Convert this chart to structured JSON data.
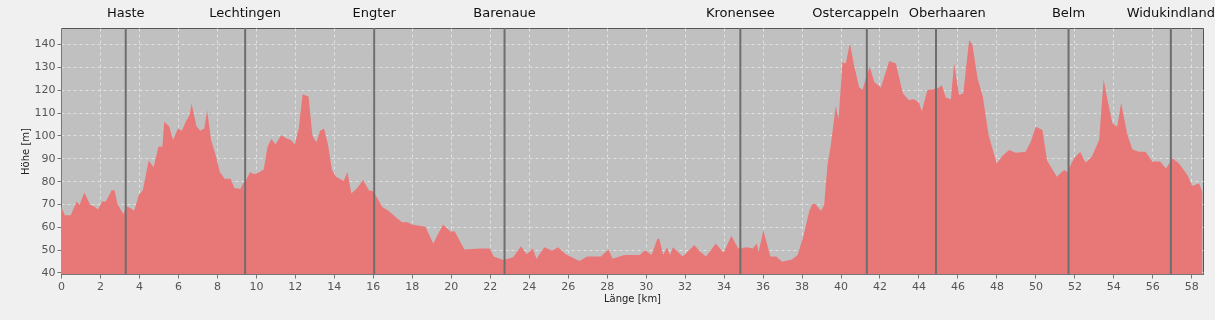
{
  "chart_data": {
    "type": "area",
    "xlabel": "Länge [km]",
    "ylabel": "Höhe [m]",
    "x": [
      0,
      0.2,
      0.5,
      0.8,
      0.95,
      1.2,
      1.5,
      1.7,
      1.9,
      2.1,
      2.3,
      2.6,
      2.75,
      2.9,
      3.2,
      3.35,
      3.6,
      3.75,
      4.0,
      4.2,
      4.5,
      4.75,
      5.0,
      5.2,
      5.3,
      5.55,
      5.75,
      6.0,
      6.2,
      6.4,
      6.6,
      6.7,
      6.95,
      7.15,
      7.35,
      7.5,
      7.7,
      7.95,
      8.15,
      8.4,
      8.7,
      8.9,
      9.2,
      9.35,
      9.45,
      9.7,
      9.9,
      10.2,
      10.4,
      10.6,
      10.8,
      11.0,
      11.3,
      11.6,
      11.8,
      12.0,
      12.2,
      12.4,
      12.7,
      12.9,
      13.1,
      13.3,
      13.5,
      13.7,
      13.9,
      14.1,
      14.5,
      14.7,
      14.9,
      15.2,
      15.5,
      15.8,
      16.0,
      16.2,
      16.5,
      16.8,
      17.2,
      17.5,
      17.8,
      18.0,
      18.7,
      19.1,
      19.6,
      20.0,
      20.2,
      20.7,
      21.5,
      22.0,
      22.2,
      22.7,
      23.2,
      23.6,
      23.9,
      24.2,
      24.4,
      24.8,
      25.2,
      25.5,
      25.9,
      26.6,
      27.0,
      27.7,
      28.1,
      28.3,
      28.9,
      29.7,
      29.97,
      30.3,
      30.6,
      30.7,
      30.9,
      31.1,
      31.25,
      31.4,
      31.9,
      32.5,
      32.8,
      33.1,
      33.6,
      34.0,
      34.4,
      34.75,
      35.2,
      35.5,
      35.7,
      35.8,
      36.04,
      36.4,
      36.7,
      37.0,
      37.5,
      37.8,
      38.1,
      38.4,
      38.56,
      38.7,
      39.0,
      39.16,
      39.33,
      39.5,
      39.76,
      39.9,
      40.1,
      40.27,
      40.48,
      40.7,
      40.96,
      41.13,
      41.3,
      41.5,
      41.73,
      42.07,
      42.5,
      42.84,
      43.2,
      43.5,
      43.78,
      44.03,
      44.17,
      44.46,
      44.7,
      45.06,
      45.2,
      45.4,
      45.66,
      45.83,
      46.08,
      46.3,
      46.6,
      46.77,
      47.03,
      47.3,
      47.6,
      48.02,
      48.3,
      48.65,
      48.99,
      49.5,
      49.76,
      50.02,
      50.36,
      50.6,
      51.1,
      51.47,
      51.64,
      51.98,
      52.3,
      52.58,
      52.9,
      53.27,
      53.5,
      53.7,
      53.95,
      54.2,
      54.4,
      54.7,
      54.97,
      55.3,
      55.65,
      56.0,
      56.4,
      56.7,
      57.03,
      57.37,
      57.8,
      58.05,
      58.4,
      58.56
    ],
    "series": [
      {
        "color": "#e87878",
        "values": [
          69,
          65,
          65,
          71,
          69.5,
          75,
          69.5,
          69,
          67.5,
          71,
          71,
          76,
          76,
          70,
          65.5,
          69,
          68,
          67,
          74,
          76,
          89,
          86,
          95,
          95,
          106,
          104,
          98,
          103,
          102,
          106,
          109,
          114,
          104,
          102,
          103,
          111,
          98,
          91,
          84,
          81,
          81,
          77,
          76.5,
          79,
          79.5,
          84,
          83,
          84,
          85,
          95,
          98.5,
          96,
          100,
          98.5,
          98,
          96,
          103,
          118,
          117,
          100,
          97,
          102,
          103,
          96,
          85,
          82,
          80,
          84,
          74.5,
          77,
          80.5,
          76,
          75.5,
          73,
          68.5,
          67,
          64,
          62,
          62,
          61,
          60,
          52.7,
          61,
          57.8,
          58,
          50,
          50.5,
          50.5,
          47,
          45.4,
          46.6,
          51.5,
          48,
          50.5,
          46,
          51,
          49.5,
          51,
          48,
          45,
          47,
          47,
          50,
          46,
          47.6,
          47.6,
          49.8,
          47.6,
          54.6,
          54.7,
          47.6,
          51,
          47.6,
          51,
          47,
          52,
          49,
          47,
          52.7,
          48.6,
          56,
          50.5,
          51,
          50.5,
          52.7,
          49,
          58.5,
          47,
          47,
          44.7,
          45.7,
          47.6,
          56,
          67,
          70,
          70,
          67,
          69.5,
          87,
          95.8,
          113,
          107,
          132,
          131.5,
          140.3,
          130.5,
          121,
          120,
          125,
          130,
          123.5,
          121,
          132.6,
          131.5,
          118.4,
          115.5,
          115.8,
          114.3,
          110.4,
          120,
          120,
          121,
          122,
          116.6,
          115.8,
          131.5,
          117.7,
          118.4,
          141.8,
          139.6,
          125,
          117,
          100,
          87.7,
          91,
          93.6,
          92.4,
          92.8,
          97.2,
          103.8,
          102.3,
          89,
          81.9,
          84.8,
          84,
          90,
          92.8,
          88,
          90.7,
          98,
          124.5,
          115.5,
          105.3,
          103.8,
          114.3,
          100.9,
          93.9,
          92.8,
          92.8,
          88.5,
          88.5,
          85.5,
          90,
          87.7,
          82.6,
          77.8,
          79,
          75.3
        ]
      }
    ],
    "xlim": [
      0,
      58.6
    ],
    "ylim": [
      39.3,
      147
    ],
    "xticks": [
      0,
      2,
      4,
      6,
      8,
      10,
      12,
      14,
      16,
      18,
      20,
      22,
      24,
      26,
      28,
      30,
      32,
      34,
      36,
      38,
      40,
      42,
      44,
      46,
      48,
      50,
      52,
      54,
      56,
      58
    ],
    "yticks": [
      40,
      50,
      60,
      70,
      80,
      90,
      100,
      110,
      120,
      130,
      140
    ],
    "grid": true,
    "ref_lines": [
      {
        "axis": "x",
        "value": 3.32,
        "label": "Haste",
        "color": "#6e6e6e"
      },
      {
        "axis": "x",
        "value": 9.45,
        "label": "Lechtingen",
        "color": "#6e6e6e"
      },
      {
        "axis": "x",
        "value": 16.07,
        "label": "Engter",
        "color": "#6e6e6e"
      },
      {
        "axis": "x",
        "value": 22.76,
        "label": "Barenaue",
        "color": "#6e6e6e"
      },
      {
        "axis": "x",
        "value": 34.86,
        "label": "Kronensee",
        "color": "#6e6e6e"
      },
      {
        "axis": "x",
        "value": 41.35,
        "label": "Ostercappeln",
        "color": "#6e6e6e"
      },
      {
        "axis": "x",
        "value": 44.9,
        "label": "Oberhaaren",
        "color": "#6e6e6e"
      },
      {
        "axis": "x",
        "value": 51.7,
        "label": "Belm",
        "color": "#6e6e6e"
      },
      {
        "axis": "x",
        "value": 56.95,
        "label": "Widukindland",
        "color": "#6e6e6e"
      }
    ]
  }
}
